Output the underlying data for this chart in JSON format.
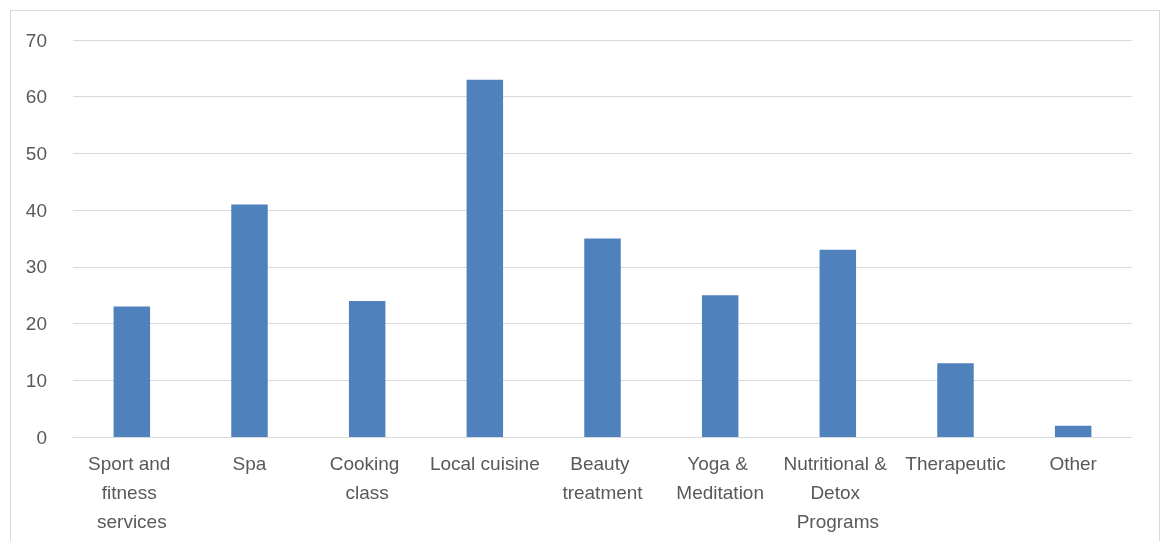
{
  "chart_data": {
    "type": "bar",
    "categories": [
      "Sport and fitness services",
      "Spa",
      "Cooking class",
      "Local cuisine",
      "Beauty treatment",
      "Yoga & Meditation",
      "Nutritional & Detox Programs",
      "Therapeutic",
      "Other"
    ],
    "values": [
      23,
      41,
      24,
      63,
      35,
      25,
      33,
      13,
      2
    ],
    "color": "#4f81bd",
    "ylim": [
      0,
      70
    ],
    "yticks": [
      0,
      10,
      20,
      30,
      40,
      50,
      60,
      70
    ],
    "grid": "y"
  }
}
